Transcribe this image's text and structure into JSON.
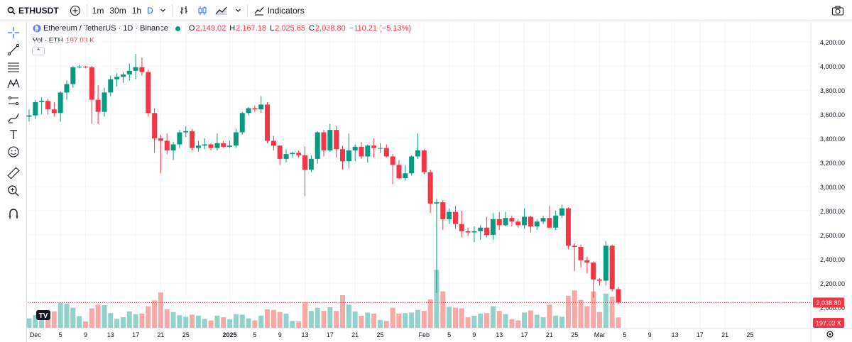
{
  "toolbar": {
    "symbol": "ETHUSDT",
    "intervals": [
      "1m",
      "30m",
      "1h",
      "D"
    ],
    "active_interval": "D",
    "indicators_label": "Indicators",
    "icons": [
      "search-icon",
      "plus-circle-icon",
      "chevron-down-icon",
      "bar-chart-icon",
      "candles-icon",
      "area-chart-icon",
      "indicators-icon",
      "camera-icon"
    ]
  },
  "left_tools": [
    "crosshair-icon",
    "trend-line-icon",
    "fib-icon",
    "pattern-icon",
    "measure-icon",
    "brush-icon",
    "text-icon",
    "emoji-icon",
    "ruler-icon",
    "zoom-icon",
    "magnet-icon"
  ],
  "legend": {
    "title": "Ethereum / TetherUS · 1D · Binance",
    "open_key": "O",
    "open": "2,149.02",
    "high_key": "H",
    "high": "2,167.18",
    "low_key": "L",
    "low": "2,025.65",
    "close_key": "C",
    "close": "2,038.80",
    "change": "−110.21 (−5.13%)",
    "volume_label": "Vol · ETH",
    "volume": "197.03 K",
    "collapse_glyph": "⌃"
  },
  "colors": {
    "up": "#089981",
    "down": "#f23645",
    "up_vol": "#92d2cc",
    "down_vol": "#f7a9a7",
    "grid": "#f0f3fa",
    "text": "#131722"
  },
  "chart_data": {
    "type": "candlestick",
    "symbol": "ETHUSDT",
    "y_ticks": [
      2000,
      2200,
      2400,
      2600,
      2800,
      3000,
      3200,
      3400,
      3600,
      3800,
      4000,
      4200
    ],
    "y_tick_labels": [
      "2,000.00",
      "2,200.00",
      "2,400.00",
      "2,600.00",
      "2,800.00",
      "3,000.00",
      "3,200.00",
      "3,400.00",
      "3,600.00",
      "3,800.00",
      "4,000.00",
      "4,200.00"
    ],
    "ylim": [
      1950,
      4250
    ],
    "x_labels": [
      {
        "label": "Dec",
        "date": "2024-12-01"
      },
      {
        "label": "5",
        "date": "2024-12-05"
      },
      {
        "label": "9",
        "date": "2024-12-09"
      },
      {
        "label": "13",
        "date": "2024-12-13"
      },
      {
        "label": "17",
        "date": "2024-12-17"
      },
      {
        "label": "21",
        "date": "2024-12-21"
      },
      {
        "label": "25",
        "date": "2024-12-25"
      },
      {
        "label": "2025",
        "date": "2025-01-01"
      },
      {
        "label": "5",
        "date": "2025-01-05"
      },
      {
        "label": "9",
        "date": "2025-01-09"
      },
      {
        "label": "13",
        "date": "2025-01-13"
      },
      {
        "label": "17",
        "date": "2025-01-17"
      },
      {
        "label": "21",
        "date": "2025-01-21"
      },
      {
        "label": "25",
        "date": "2025-01-25"
      },
      {
        "label": "Feb",
        "date": "2025-02-01"
      },
      {
        "label": "5",
        "date": "2025-02-05"
      },
      {
        "label": "9",
        "date": "2025-02-09"
      },
      {
        "label": "13",
        "date": "2025-02-13"
      },
      {
        "label": "17",
        "date": "2025-02-17"
      },
      {
        "label": "21",
        "date": "2025-02-21"
      },
      {
        "label": "25",
        "date": "2025-02-25"
      },
      {
        "label": "Mar",
        "date": "2025-03-01"
      },
      {
        "label": "5",
        "date": "2025-03-05"
      },
      {
        "label": "9",
        "date": "2025-03-09"
      },
      {
        "label": "13",
        "date": "2025-03-13"
      },
      {
        "label": "17",
        "date": "2025-03-17"
      },
      {
        "label": "21",
        "date": "2025-03-21"
      },
      {
        "label": "25",
        "date": "2025-03-25"
      }
    ],
    "last_price_label": "2,038.80",
    "last_volume_label": "197.03 K",
    "volume_max_k": 700,
    "candles": [
      {
        "date": "2024-11-30",
        "o": 3580,
        "h": 3640,
        "l": 3540,
        "c": 3590,
        "v": 180
      },
      {
        "date": "2024-12-01",
        "o": 3590,
        "h": 3720,
        "l": 3560,
        "c": 3700,
        "v": 240
      },
      {
        "date": "2024-12-02",
        "o": 3700,
        "h": 3740,
        "l": 3600,
        "c": 3710,
        "v": 290
      },
      {
        "date": "2024-12-03",
        "o": 3710,
        "h": 3730,
        "l": 3600,
        "c": 3640,
        "v": 270
      },
      {
        "date": "2024-12-04",
        "o": 3640,
        "h": 3700,
        "l": 3580,
        "c": 3610,
        "v": 310
      },
      {
        "date": "2024-12-05",
        "o": 3610,
        "h": 3790,
        "l": 3540,
        "c": 3780,
        "v": 480
      },
      {
        "date": "2024-12-06",
        "o": 3780,
        "h": 3880,
        "l": 3720,
        "c": 3850,
        "v": 460
      },
      {
        "date": "2024-12-07",
        "o": 3850,
        "h": 4000,
        "l": 3820,
        "c": 3990,
        "v": 380
      },
      {
        "date": "2024-12-08",
        "o": 3990,
        "h": 4010,
        "l": 3980,
        "c": 3995,
        "v": 220
      },
      {
        "date": "2024-12-09",
        "o": 3995,
        "h": 4000,
        "l": 3980,
        "c": 3990,
        "v": 120
      },
      {
        "date": "2024-12-10",
        "o": 3990,
        "h": 4000,
        "l": 3520,
        "c": 3720,
        "v": 370
      },
      {
        "date": "2024-12-11",
        "o": 3720,
        "h": 3840,
        "l": 3520,
        "c": 3620,
        "v": 440
      },
      {
        "date": "2024-12-12",
        "o": 3620,
        "h": 3820,
        "l": 3580,
        "c": 3780,
        "v": 430
      },
      {
        "date": "2024-12-13",
        "o": 3780,
        "h": 3920,
        "l": 3750,
        "c": 3890,
        "v": 280
      },
      {
        "date": "2024-12-14",
        "o": 3890,
        "h": 3940,
        "l": 3830,
        "c": 3910,
        "v": 170
      },
      {
        "date": "2024-12-15",
        "o": 3910,
        "h": 3950,
        "l": 3860,
        "c": 3930,
        "v": 200
      },
      {
        "date": "2024-12-16",
        "o": 3930,
        "h": 4020,
        "l": 3880,
        "c": 3960,
        "v": 310
      },
      {
        "date": "2024-12-17",
        "o": 3960,
        "h": 4100,
        "l": 3890,
        "c": 3990,
        "v": 260
      },
      {
        "date": "2024-12-18",
        "o": 3990,
        "h": 4070,
        "l": 3920,
        "c": 3950,
        "v": 270
      },
      {
        "date": "2024-12-19",
        "o": 3950,
        "h": 3970,
        "l": 3580,
        "c": 3610,
        "v": 410
      },
      {
        "date": "2024-12-20",
        "o": 3610,
        "h": 3650,
        "l": 3280,
        "c": 3400,
        "v": 520
      },
      {
        "date": "2024-12-21",
        "o": 3400,
        "h": 3430,
        "l": 3110,
        "c": 3380,
        "v": 670
      },
      {
        "date": "2024-12-22",
        "o": 3380,
        "h": 3440,
        "l": 3270,
        "c": 3300,
        "v": 350
      },
      {
        "date": "2024-12-23",
        "o": 3300,
        "h": 3370,
        "l": 3220,
        "c": 3350,
        "v": 300
      },
      {
        "date": "2024-12-24",
        "o": 3350,
        "h": 3470,
        "l": 3320,
        "c": 3450,
        "v": 240
      },
      {
        "date": "2024-12-25",
        "o": 3450,
        "h": 3500,
        "l": 3410,
        "c": 3460,
        "v": 210
      },
      {
        "date": "2024-12-26",
        "o": 3460,
        "h": 3480,
        "l": 3300,
        "c": 3320,
        "v": 250
      },
      {
        "date": "2024-12-27",
        "o": 3320,
        "h": 3380,
        "l": 3290,
        "c": 3340,
        "v": 230
      },
      {
        "date": "2024-12-28",
        "o": 3340,
        "h": 3400,
        "l": 3310,
        "c": 3350,
        "v": 170
      },
      {
        "date": "2024-12-29",
        "o": 3350,
        "h": 3360,
        "l": 3300,
        "c": 3320,
        "v": 140
      },
      {
        "date": "2024-12-30",
        "o": 3320,
        "h": 3440,
        "l": 3300,
        "c": 3360,
        "v": 230
      },
      {
        "date": "2024-12-31",
        "o": 3360,
        "h": 3380,
        "l": 3320,
        "c": 3330,
        "v": 200
      },
      {
        "date": "2025-01-01",
        "o": 3330,
        "h": 3380,
        "l": 3320,
        "c": 3340,
        "v": 160
      },
      {
        "date": "2025-01-02",
        "o": 3340,
        "h": 3480,
        "l": 3320,
        "c": 3450,
        "v": 260
      },
      {
        "date": "2025-01-03",
        "o": 3450,
        "h": 3620,
        "l": 3430,
        "c": 3610,
        "v": 250
      },
      {
        "date": "2025-01-04",
        "o": 3610,
        "h": 3660,
        "l": 3590,
        "c": 3650,
        "v": 180
      },
      {
        "date": "2025-01-05",
        "o": 3650,
        "h": 3670,
        "l": 3620,
        "c": 3640,
        "v": 140
      },
      {
        "date": "2025-01-06",
        "o": 3640,
        "h": 3750,
        "l": 3610,
        "c": 3680,
        "v": 230
      },
      {
        "date": "2025-01-07",
        "o": 3680,
        "h": 3700,
        "l": 3360,
        "c": 3380,
        "v": 350
      },
      {
        "date": "2025-01-08",
        "o": 3380,
        "h": 3420,
        "l": 3300,
        "c": 3340,
        "v": 340
      },
      {
        "date": "2025-01-09",
        "o": 3340,
        "h": 3340,
        "l": 3180,
        "c": 3230,
        "v": 300
      },
      {
        "date": "2025-01-10",
        "o": 3230,
        "h": 3310,
        "l": 3200,
        "c": 3270,
        "v": 270
      },
      {
        "date": "2025-01-11",
        "o": 3270,
        "h": 3290,
        "l": 3240,
        "c": 3280,
        "v": 130
      },
      {
        "date": "2025-01-12",
        "o": 3280,
        "h": 3300,
        "l": 3240,
        "c": 3260,
        "v": 120
      },
      {
        "date": "2025-01-13",
        "o": 3260,
        "h": 3330,
        "l": 2920,
        "c": 3140,
        "v": 490
      },
      {
        "date": "2025-01-14",
        "o": 3140,
        "h": 3260,
        "l": 3120,
        "c": 3230,
        "v": 320
      },
      {
        "date": "2025-01-15",
        "o": 3230,
        "h": 3460,
        "l": 3190,
        "c": 3450,
        "v": 380
      },
      {
        "date": "2025-01-16",
        "o": 3450,
        "h": 3470,
        "l": 3250,
        "c": 3300,
        "v": 320
      },
      {
        "date": "2025-01-17",
        "o": 3300,
        "h": 3520,
        "l": 3290,
        "c": 3470,
        "v": 390
      },
      {
        "date": "2025-01-18",
        "o": 3470,
        "h": 3500,
        "l": 3240,
        "c": 3310,
        "v": 320
      },
      {
        "date": "2025-01-19",
        "o": 3310,
        "h": 3340,
        "l": 3140,
        "c": 3210,
        "v": 620
      },
      {
        "date": "2025-01-20",
        "o": 3210,
        "h": 3440,
        "l": 3150,
        "c": 3300,
        "v": 440
      },
      {
        "date": "2025-01-21",
        "o": 3300,
        "h": 3350,
        "l": 3210,
        "c": 3330,
        "v": 310
      },
      {
        "date": "2025-01-22",
        "o": 3330,
        "h": 3370,
        "l": 3230,
        "c": 3250,
        "v": 230
      },
      {
        "date": "2025-01-23",
        "o": 3250,
        "h": 3350,
        "l": 3200,
        "c": 3340,
        "v": 290
      },
      {
        "date": "2025-01-24",
        "o": 3340,
        "h": 3400,
        "l": 3240,
        "c": 3320,
        "v": 270
      },
      {
        "date": "2025-01-25",
        "o": 3320,
        "h": 3360,
        "l": 3280,
        "c": 3320,
        "v": 150
      },
      {
        "date": "2025-01-26",
        "o": 3320,
        "h": 3350,
        "l": 3240,
        "c": 3250,
        "v": 130
      },
      {
        "date": "2025-01-27",
        "o": 3250,
        "h": 3270,
        "l": 3020,
        "c": 3180,
        "v": 380
      },
      {
        "date": "2025-01-28",
        "o": 3180,
        "h": 3220,
        "l": 3060,
        "c": 3070,
        "v": 270
      },
      {
        "date": "2025-01-29",
        "o": 3070,
        "h": 3180,
        "l": 3050,
        "c": 3110,
        "v": 280
      },
      {
        "date": "2025-01-30",
        "o": 3110,
        "h": 3260,
        "l": 3090,
        "c": 3250,
        "v": 290
      },
      {
        "date": "2025-01-31",
        "o": 3250,
        "h": 3440,
        "l": 3230,
        "c": 3300,
        "v": 340
      },
      {
        "date": "2025-02-01",
        "o": 3300,
        "h": 3310,
        "l": 3100,
        "c": 3120,
        "v": 320
      },
      {
        "date": "2025-02-02",
        "o": 3120,
        "h": 3140,
        "l": 2780,
        "c": 2860,
        "v": 540
      },
      {
        "date": "2025-02-03",
        "o": 2860,
        "h": 2900,
        "l": 2120,
        "c": 2870,
        "v": 1100
      },
      {
        "date": "2025-02-04",
        "o": 2870,
        "h": 2890,
        "l": 2640,
        "c": 2730,
        "v": 690
      },
      {
        "date": "2025-02-05",
        "o": 2730,
        "h": 2820,
        "l": 2690,
        "c": 2790,
        "v": 400
      },
      {
        "date": "2025-02-06",
        "o": 2790,
        "h": 2840,
        "l": 2650,
        "c": 2690,
        "v": 380
      },
      {
        "date": "2025-02-07",
        "o": 2690,
        "h": 2800,
        "l": 2580,
        "c": 2630,
        "v": 370
      },
      {
        "date": "2025-02-08",
        "o": 2630,
        "h": 2660,
        "l": 2590,
        "c": 2620,
        "v": 200
      },
      {
        "date": "2025-02-09",
        "o": 2620,
        "h": 2670,
        "l": 2540,
        "c": 2630,
        "v": 230
      },
      {
        "date": "2025-02-10",
        "o": 2630,
        "h": 2680,
        "l": 2560,
        "c": 2660,
        "v": 270
      },
      {
        "date": "2025-02-11",
        "o": 2660,
        "h": 2750,
        "l": 2580,
        "c": 2600,
        "v": 280
      },
      {
        "date": "2025-02-12",
        "o": 2600,
        "h": 2780,
        "l": 2560,
        "c": 2730,
        "v": 410
      },
      {
        "date": "2025-02-13",
        "o": 2730,
        "h": 2790,
        "l": 2640,
        "c": 2680,
        "v": 320
      },
      {
        "date": "2025-02-14",
        "o": 2680,
        "h": 2790,
        "l": 2670,
        "c": 2740,
        "v": 260
      },
      {
        "date": "2025-02-15",
        "o": 2740,
        "h": 2760,
        "l": 2670,
        "c": 2710,
        "v": 160
      },
      {
        "date": "2025-02-16",
        "o": 2710,
        "h": 2730,
        "l": 2660,
        "c": 2680,
        "v": 140
      },
      {
        "date": "2025-02-17",
        "o": 2680,
        "h": 2820,
        "l": 2650,
        "c": 2750,
        "v": 290
      },
      {
        "date": "2025-02-18",
        "o": 2750,
        "h": 2760,
        "l": 2620,
        "c": 2670,
        "v": 330
      },
      {
        "date": "2025-02-19",
        "o": 2670,
        "h": 2730,
        "l": 2640,
        "c": 2710,
        "v": 250
      },
      {
        "date": "2025-02-20",
        "o": 2710,
        "h": 2760,
        "l": 2690,
        "c": 2740,
        "v": 200
      },
      {
        "date": "2025-02-21",
        "o": 2740,
        "h": 2840,
        "l": 2660,
        "c": 2660,
        "v": 440
      },
      {
        "date": "2025-02-22",
        "o": 2660,
        "h": 2800,
        "l": 2640,
        "c": 2760,
        "v": 230
      },
      {
        "date": "2025-02-23",
        "o": 2760,
        "h": 2850,
        "l": 2740,
        "c": 2820,
        "v": 210
      },
      {
        "date": "2025-02-24",
        "o": 2820,
        "h": 2830,
        "l": 2480,
        "c": 2510,
        "v": 610
      },
      {
        "date": "2025-02-25",
        "o": 2510,
        "h": 2530,
        "l": 2300,
        "c": 2500,
        "v": 710
      },
      {
        "date": "2025-02-26",
        "o": 2500,
        "h": 2520,
        "l": 2330,
        "c": 2390,
        "v": 530
      },
      {
        "date": "2025-02-27",
        "o": 2390,
        "h": 2420,
        "l": 2280,
        "c": 2370,
        "v": 410
      },
      {
        "date": "2025-02-28",
        "o": 2370,
        "h": 2380,
        "l": 2080,
        "c": 2230,
        "v": 690
      },
      {
        "date": "2025-03-01",
        "o": 2230,
        "h": 2240,
        "l": 2180,
        "c": 2220,
        "v": 300
      },
      {
        "date": "2025-03-02",
        "o": 2220,
        "h": 2550,
        "l": 2180,
        "c": 2510,
        "v": 650
      },
      {
        "date": "2025-03-03",
        "o": 2510,
        "h": 2520,
        "l": 2130,
        "c": 2150,
        "v": 590
      },
      {
        "date": "2025-03-04",
        "o": 2150,
        "h": 2170,
        "l": 2025,
        "c": 2039,
        "v": 197
      }
    ]
  }
}
